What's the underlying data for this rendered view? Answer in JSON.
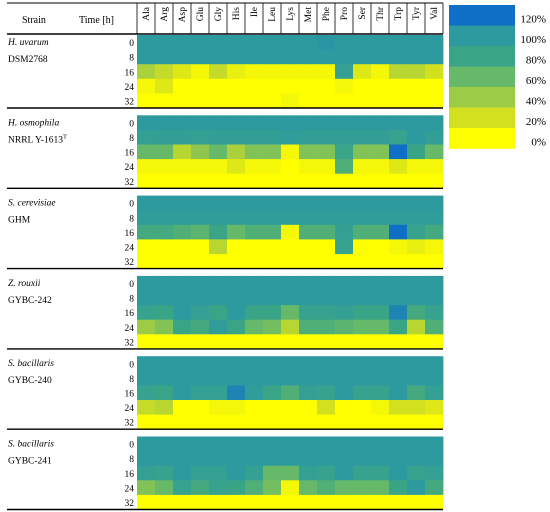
{
  "chart_data": {
    "type": "heatmap",
    "header": {
      "strain": "Strain",
      "time": "Time [h]"
    },
    "amino_acids": [
      "Ala",
      "Arg",
      "Asp",
      "Glu",
      "Gly",
      "His",
      "Ile",
      "Leu",
      "Lys",
      "Met",
      "Phe",
      "Pro",
      "Ser",
      "Thr",
      "Trp",
      "Tyr",
      "Val"
    ],
    "times": [
      "0",
      "8",
      "16",
      "24",
      "32"
    ],
    "colorbar": {
      "ticks": [
        "120%",
        "100%",
        "80%",
        "60%",
        "40%",
        "20%",
        "0%"
      ],
      "colors": [
        "#0f6fc6",
        "#2d9aa0",
        "#3aa486",
        "#66b968",
        "#9ccc45",
        "#d3e01f",
        "#ffff00"
      ]
    },
    "strains": [
      {
        "species": "H. uvarum",
        "strain": "DSM2768",
        "strain_sup": "",
        "values": [
          [
            100,
            100,
            100,
            100,
            100,
            100,
            100,
            100,
            100,
            100,
            102,
            100,
            100,
            100,
            100,
            100,
            100
          ],
          [
            100,
            100,
            100,
            100,
            100,
            100,
            100,
            100,
            100,
            100,
            100,
            100,
            100,
            100,
            100,
            100,
            100
          ],
          [
            35,
            25,
            15,
            5,
            25,
            10,
            5,
            5,
            5,
            5,
            5,
            90,
            15,
            5,
            30,
            30,
            20
          ],
          [
            5,
            15,
            0,
            0,
            0,
            0,
            0,
            0,
            0,
            0,
            0,
            5,
            0,
            0,
            0,
            0,
            0
          ],
          [
            0,
            0,
            0,
            0,
            0,
            0,
            0,
            0,
            5,
            0,
            0,
            0,
            0,
            0,
            0,
            0,
            0
          ]
        ]
      },
      {
        "species": "H. osmophila",
        "strain": "NRRL Y-1613",
        "strain_sup": "T",
        "values": [
          [
            100,
            100,
            100,
            100,
            100,
            100,
            100,
            100,
            100,
            100,
            100,
            100,
            100,
            100,
            100,
            100,
            100
          ],
          [
            90,
            92,
            92,
            90,
            92,
            92,
            92,
            92,
            95,
            92,
            92,
            92,
            92,
            92,
            85,
            100,
            92
          ],
          [
            60,
            60,
            30,
            45,
            60,
            35,
            50,
            50,
            5,
            50,
            50,
            80,
            50,
            50,
            120,
            80,
            60
          ],
          [
            5,
            5,
            5,
            5,
            5,
            15,
            5,
            5,
            0,
            5,
            5,
            70,
            5,
            5,
            15,
            5,
            5
          ],
          [
            0,
            0,
            0,
            0,
            0,
            0,
            0,
            0,
            0,
            0,
            0,
            0,
            0,
            0,
            0,
            0,
            0
          ]
        ]
      },
      {
        "species": "S. cerevisiae",
        "strain": "GHM",
        "strain_sup": "",
        "values": [
          [
            100,
            100,
            100,
            100,
            100,
            100,
            100,
            100,
            100,
            100,
            100,
            100,
            100,
            100,
            100,
            100,
            100
          ],
          [
            95,
            95,
            95,
            95,
            95,
            95,
            95,
            95,
            95,
            95,
            95,
            95,
            95,
            95,
            95,
            95,
            95
          ],
          [
            75,
            75,
            70,
            65,
            80,
            60,
            70,
            70,
            5,
            70,
            70,
            90,
            70,
            70,
            120,
            85,
            75
          ],
          [
            0,
            0,
            0,
            0,
            30,
            0,
            0,
            0,
            0,
            0,
            0,
            85,
            0,
            0,
            5,
            10,
            5
          ],
          [
            0,
            0,
            0,
            0,
            0,
            0,
            0,
            0,
            0,
            0,
            0,
            0,
            0,
            0,
            0,
            0,
            0
          ]
        ]
      },
      {
        "species": "Z. rouxii",
        "strain": "GYBC-242",
        "strain_sup": "",
        "values": [
          [
            100,
            100,
            100,
            100,
            100,
            100,
            100,
            100,
            100,
            100,
            100,
            100,
            100,
            100,
            100,
            100,
            100
          ],
          [
            100,
            100,
            100,
            100,
            100,
            100,
            100,
            100,
            100,
            100,
            100,
            100,
            100,
            100,
            100,
            100,
            100
          ],
          [
            85,
            80,
            100,
            90,
            80,
            100,
            80,
            80,
            60,
            85,
            85,
            90,
            80,
            80,
            110,
            75,
            85
          ],
          [
            40,
            50,
            80,
            75,
            95,
            80,
            60,
            55,
            30,
            70,
            70,
            65,
            60,
            60,
            80,
            30,
            70
          ],
          [
            0,
            0,
            0,
            0,
            0,
            0,
            0,
            0,
            0,
            0,
            0,
            0,
            0,
            0,
            0,
            0,
            0
          ]
        ]
      },
      {
        "species": "S. bacillaris",
        "strain": "GYBC-240",
        "strain_sup": "",
        "values": [
          [
            100,
            100,
            100,
            100,
            100,
            100,
            100,
            100,
            100,
            100,
            100,
            100,
            100,
            100,
            100,
            100,
            100
          ],
          [
            100,
            100,
            100,
            100,
            100,
            100,
            100,
            100,
            100,
            100,
            100,
            100,
            100,
            100,
            100,
            100,
            100
          ],
          [
            85,
            80,
            100,
            90,
            90,
            110,
            95,
            80,
            70,
            90,
            85,
            100,
            85,
            85,
            100,
            75,
            90
          ],
          [
            25,
            30,
            0,
            0,
            5,
            5,
            0,
            0,
            0,
            0,
            20,
            0,
            0,
            5,
            20,
            20,
            15
          ],
          [
            0,
            0,
            0,
            0,
            0,
            0,
            0,
            0,
            0,
            0,
            0,
            0,
            0,
            0,
            0,
            0,
            0
          ]
        ]
      },
      {
        "species": "S. bacillaris",
        "strain": "GYBC-241",
        "strain_sup": "",
        "values": [
          [
            100,
            100,
            100,
            100,
            100,
            100,
            100,
            100,
            100,
            100,
            100,
            100,
            100,
            100,
            100,
            100,
            100
          ],
          [
            100,
            100,
            100,
            100,
            100,
            100,
            100,
            100,
            100,
            100,
            100,
            100,
            100,
            100,
            100,
            100,
            100
          ],
          [
            90,
            85,
            100,
            90,
            90,
            100,
            90,
            60,
            60,
            90,
            85,
            100,
            85,
            85,
            100,
            85,
            90
          ],
          [
            50,
            60,
            85,
            75,
            85,
            80,
            70,
            55,
            5,
            60,
            70,
            60,
            60,
            60,
            80,
            100,
            75
          ],
          [
            0,
            0,
            0,
            0,
            0,
            0,
            0,
            0,
            0,
            0,
            0,
            0,
            0,
            0,
            0,
            0,
            0
          ]
        ]
      }
    ]
  }
}
